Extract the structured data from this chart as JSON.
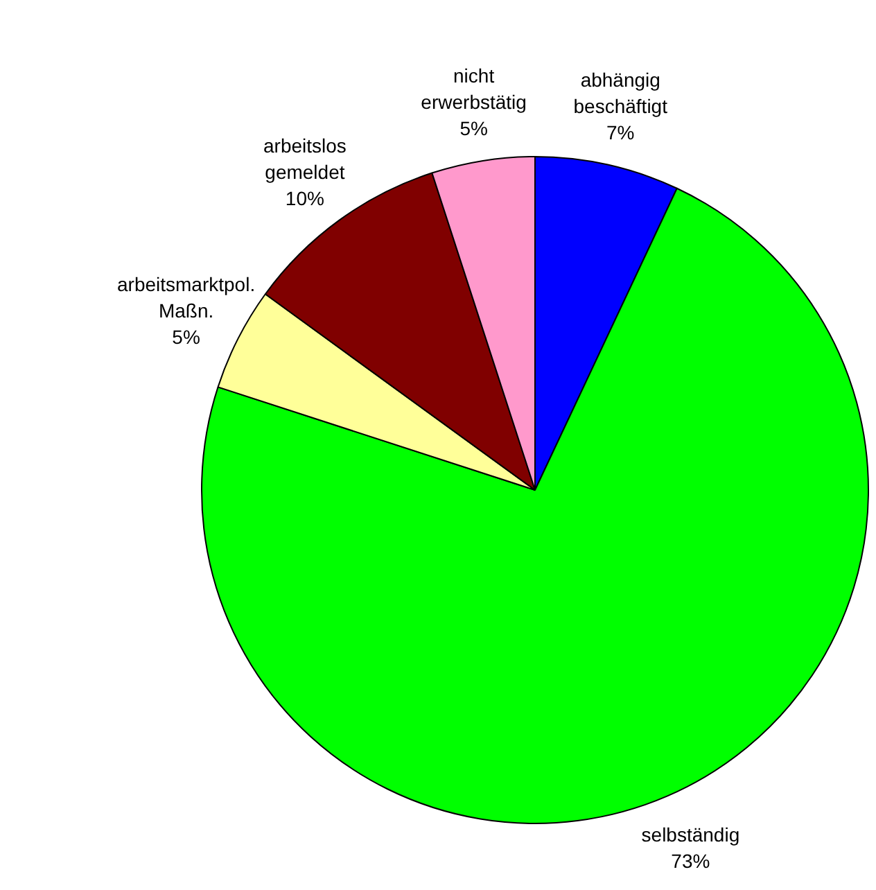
{
  "chart_data": {
    "type": "pie",
    "categories": [
      "abhängig beschäftigt",
      "selbständig",
      "arbeitsmarktpol. Maßn.",
      "arbeitslos gemeldet",
      "nicht erwerbstätig"
    ],
    "values": [
      7,
      73,
      5,
      10,
      5
    ],
    "value_labels": [
      "7%",
      "73%",
      "5%",
      "10%",
      "5%"
    ],
    "colors": [
      "#0000ff",
      "#00ff00",
      "#ffff99",
      "#800000",
      "#ff99cc"
    ],
    "legend": false
  }
}
